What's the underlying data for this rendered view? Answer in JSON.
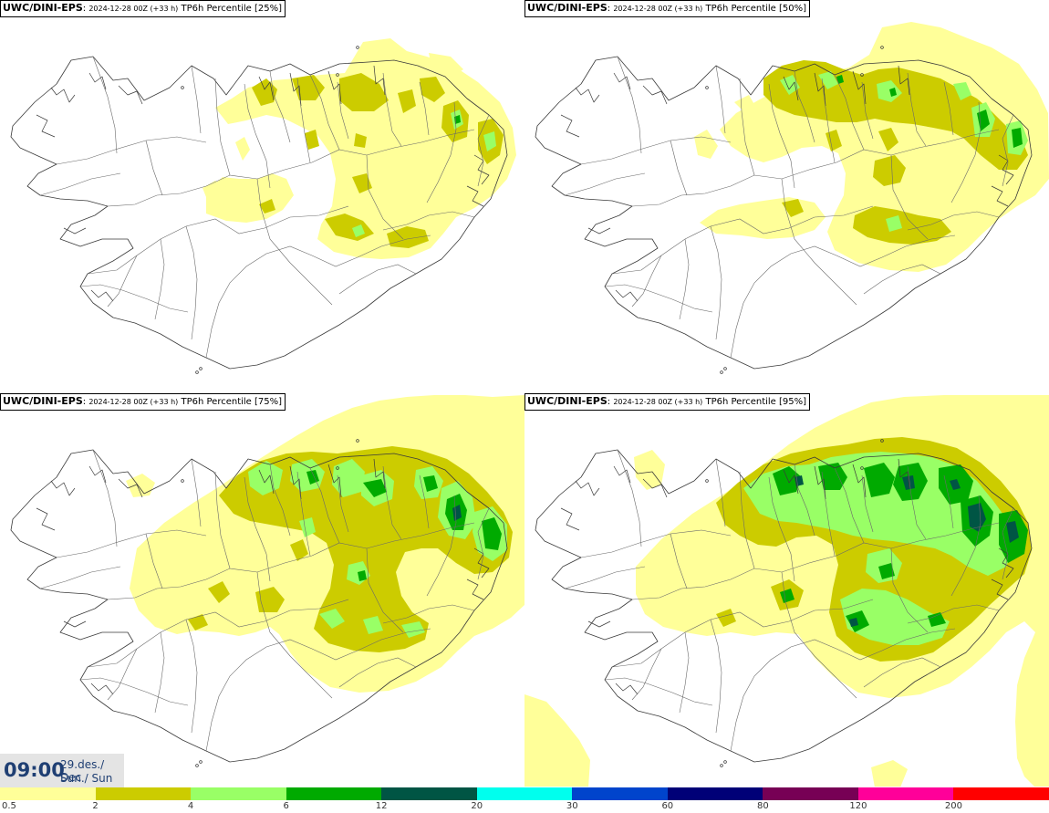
{
  "panels": [
    {
      "model": "UWC/DINI-EPS",
      "run": "2024-12-28 00Z (+33 h)",
      "product": "TP6h Percentile [25%]",
      "percentile": 25
    },
    {
      "model": "UWC/DINI-EPS",
      "run": "2024-12-28 00Z (+33 h)",
      "product": "TP6h Percentile [50%]",
      "percentile": 50
    },
    {
      "model": "UWC/DINI-EPS",
      "run": "2024-12-28 00Z (+33 h)",
      "product": "TP6h Percentile [75%]",
      "percentile": 75
    },
    {
      "model": "UWC/DINI-EPS",
      "run": "2024-12-28 00Z (+33 h)",
      "product": "TP6h Percentile [95%]",
      "percentile": 95
    }
  ],
  "valid_time": {
    "time": "09:00",
    "date": "29.des./ Dec",
    "day": "Sun./ Sun"
  },
  "legend": {
    "labels": [
      "0.5",
      "2",
      "4",
      "6",
      "12",
      "20",
      "30",
      "60",
      "80",
      "120",
      "200"
    ],
    "colors": [
      "#ffff99",
      "#cccc00",
      "#99ff66",
      "#00aa00",
      "#005544",
      "#00ffee",
      "#0044cc",
      "#000077",
      "#770055",
      "#ff0099",
      "#ff0000"
    ]
  }
}
